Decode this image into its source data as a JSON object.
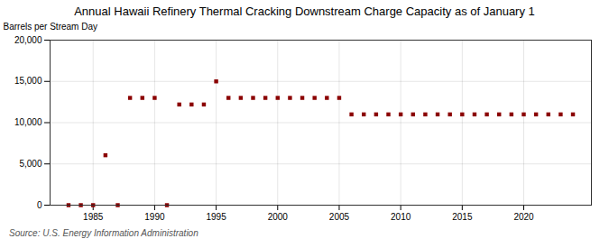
{
  "chart_data": {
    "type": "scatter",
    "title": "Annual Hawaii Refinery Thermal Cracking Downstream Charge Capacity as of January 1",
    "ylabel": "Barrels per Stream Day",
    "source": "Source: U.S. Energy Information Administration",
    "x": [
      1983,
      1984,
      1985,
      1986,
      1987,
      1988,
      1989,
      1990,
      1991,
      1992,
      1993,
      1994,
      1995,
      1996,
      1997,
      1998,
      1999,
      2000,
      2001,
      2002,
      2003,
      2004,
      2005,
      2006,
      2007,
      2008,
      2009,
      2010,
      2011,
      2012,
      2013,
      2014,
      2015,
      2016,
      2017,
      2018,
      2019,
      2020,
      2021,
      2022,
      2023,
      2024
    ],
    "values": [
      0,
      0,
      0,
      6050,
      0,
      13000,
      13000,
      13000,
      0,
      12200,
      12200,
      12200,
      15000,
      13000,
      13000,
      13000,
      13000,
      13000,
      13000,
      13000,
      13000,
      13000,
      13000,
      11000,
      11000,
      11000,
      11000,
      11000,
      11000,
      11000,
      11000,
      11000,
      11000,
      11000,
      11000,
      11000,
      11000,
      11000,
      11000,
      11000,
      11000,
      11000
    ],
    "color": "#8b0000",
    "marker": "square",
    "xlim": [
      1981.5,
      2025.5
    ],
    "xticks": [
      1985,
      1990,
      1995,
      2000,
      2005,
      2010,
      2015,
      2020
    ],
    "ylim": [
      0,
      20000
    ],
    "yticks": [
      0,
      {
        "value": 5000,
        "label": "5,000"
      },
      {
        "value": 10000,
        "label": "10,000"
      },
      {
        "value": 15000,
        "label": "15,000"
      },
      {
        "value": 20000,
        "label": "20,000"
      }
    ],
    "grid": true
  }
}
